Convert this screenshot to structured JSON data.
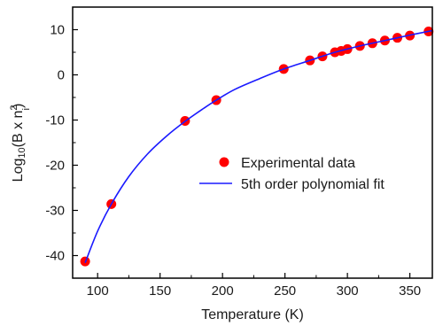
{
  "chart_data": {
    "type": "scatter",
    "xlabel": "Temperature (K)",
    "ylabel": {
      "prefix": "Log",
      "log_base": "10",
      "paren_open": "(B x n",
      "superscript": "2",
      "subscript": "i",
      "paren_close": ")"
    },
    "xlim": [
      80,
      368
    ],
    "ylim": [
      -45,
      15
    ],
    "x_ticks": [
      100,
      150,
      200,
      250,
      300,
      350
    ],
    "y_ticks": [
      -40,
      -30,
      -20,
      -10,
      0,
      10
    ],
    "x_tick_labels": [
      "100",
      "150",
      "200",
      "250",
      "300",
      "350"
    ],
    "y_tick_labels": [
      "-40",
      "-30",
      "-20",
      "-10",
      "0",
      "10"
    ],
    "grid": false,
    "legend_position": "center-right",
    "series": [
      {
        "name": "Experimental data",
        "kind": "scatter",
        "color": "#ff0000",
        "points": [
          {
            "x": 90,
            "y": -41.3
          },
          {
            "x": 111,
            "y": -28.6
          },
          {
            "x": 170,
            "y": -10.2
          },
          {
            "x": 195,
            "y": -5.6
          },
          {
            "x": 249,
            "y": 1.3
          },
          {
            "x": 270,
            "y": 3.2
          },
          {
            "x": 280,
            "y": 4.1
          },
          {
            "x": 290,
            "y": 5.0
          },
          {
            "x": 295,
            "y": 5.3
          },
          {
            "x": 300,
            "y": 5.7
          },
          {
            "x": 310,
            "y": 6.4
          },
          {
            "x": 320,
            "y": 7.0
          },
          {
            "x": 330,
            "y": 7.6
          },
          {
            "x": 340,
            "y": 8.2
          },
          {
            "x": 350,
            "y": 8.7
          },
          {
            "x": 365,
            "y": 9.6
          }
        ]
      },
      {
        "name": "5th order polynomial fit",
        "kind": "line",
        "color": "#1a1aff",
        "points": [
          {
            "x": 90,
            "y": -41.6
          },
          {
            "x": 100,
            "y": -34.6
          },
          {
            "x": 111,
            "y": -28.6
          },
          {
            "x": 125,
            "y": -22.5
          },
          {
            "x": 140,
            "y": -17.5
          },
          {
            "x": 155,
            "y": -13.6
          },
          {
            "x": 170,
            "y": -10.3
          },
          {
            "x": 185,
            "y": -7.4
          },
          {
            "x": 195,
            "y": -5.6
          },
          {
            "x": 210,
            "y": -3.2
          },
          {
            "x": 230,
            "y": -0.8
          },
          {
            "x": 249,
            "y": 1.3
          },
          {
            "x": 270,
            "y": 3.2
          },
          {
            "x": 290,
            "y": 5.0
          },
          {
            "x": 310,
            "y": 6.4
          },
          {
            "x": 330,
            "y": 7.6
          },
          {
            "x": 350,
            "y": 8.8
          },
          {
            "x": 368,
            "y": 9.8
          }
        ]
      }
    ]
  }
}
